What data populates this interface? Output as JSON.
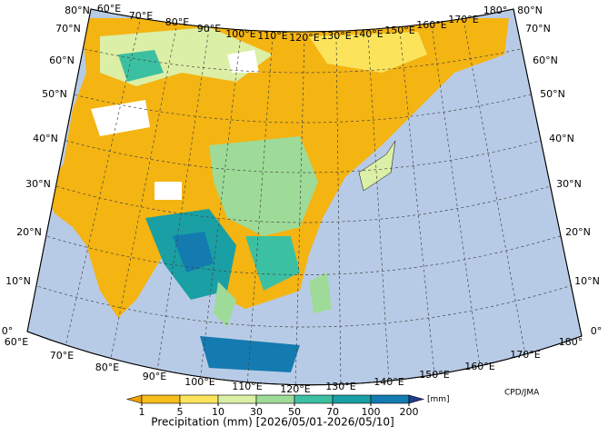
{
  "map": {
    "top_labels": [
      "60°E",
      "70°E",
      "80°E",
      "90°E",
      "100°E",
      "110°E",
      "120°E",
      "130°E",
      "140°E",
      "150°E",
      "160°E",
      "170°E",
      "180°"
    ],
    "left_labels": [
      "80°N",
      "70°N",
      "60°N",
      "50°N",
      "40°N",
      "30°N",
      "20°N",
      "10°N",
      "0°"
    ],
    "right_labels": [
      "80°N",
      "70°N",
      "60°N",
      "50°N",
      "40°N",
      "30°N",
      "20°N",
      "10°N",
      "0°"
    ],
    "bottom_labels": [
      "60°E",
      "70°E",
      "80°E",
      "90°E",
      "100°E",
      "110°E",
      "120°E",
      "130°E",
      "140°E",
      "150°E",
      "160°E",
      "170°E",
      "180°"
    ]
  },
  "colorbar": {
    "ticks": [
      1,
      5,
      10,
      30,
      50,
      70,
      100,
      200
    ],
    "colors": [
      "#f0a000",
      "#f6bd1c",
      "#fbe45c",
      "#dcefa6",
      "#9edb98",
      "#3cc0a2",
      "#1a9fa4",
      "#137bb0",
      "#1f3c8a"
    ],
    "unit": "[mm]"
  },
  "credit": "CPD/JMA",
  "caption": "Precipitation (mm) [2026/05/01-2026/05/10]"
}
